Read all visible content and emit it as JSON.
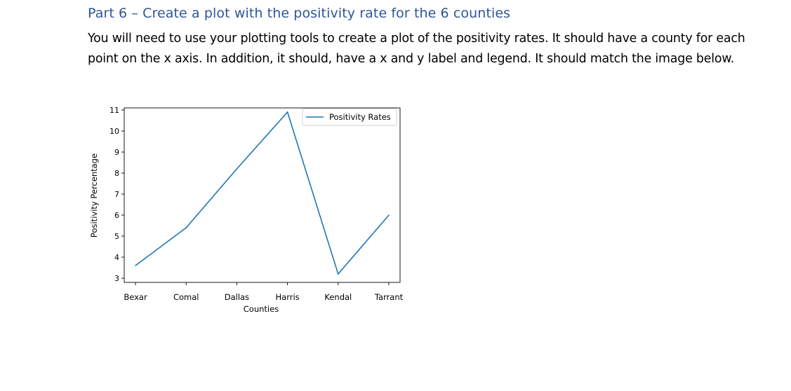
{
  "document": {
    "heading": "Part 6 – Create a plot with the positivity rate for the 6 counties",
    "paragraph": "You will need to use your plotting tools to create a plot of the positivity rates.  It should have a county for each point on the x axis. In addition, it should, have a x and y label and legend. It should match the image below."
  },
  "chart_data": {
    "type": "line",
    "categories": [
      "Bexar",
      "Comal",
      "Dallas",
      "Harris",
      "Kendal",
      "Tarrant"
    ],
    "series": [
      {
        "name": "Positivity Rates",
        "values": [
          3.6,
          5.4,
          8.2,
          10.9,
          3.2,
          6.0
        ],
        "color": "#1f77b4"
      }
    ],
    "title": "",
    "xlabel": "Counties",
    "ylabel": "Positivity Percentage",
    "yticks": [
      3,
      4,
      5,
      6,
      7,
      8,
      9,
      10,
      11
    ],
    "ylim": [
      2.8,
      11.1
    ],
    "grid": false,
    "legend": "top-right"
  }
}
